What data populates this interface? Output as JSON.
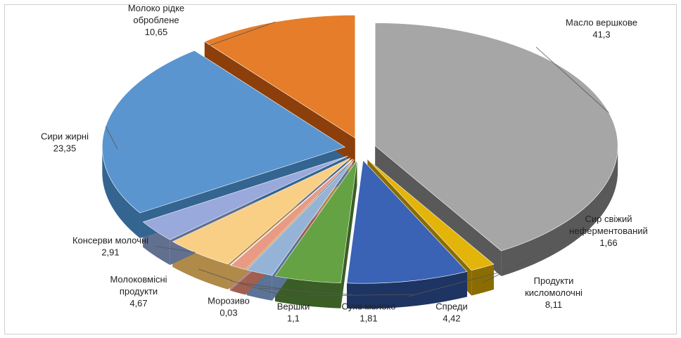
{
  "chart_data": {
    "type": "pie",
    "title": "",
    "categories": [
      "Масло вершкове",
      "Сир свіжий неферментований",
      "Продукти кисломолочні",
      "Спреди",
      "Сухе молоко",
      "Вершки",
      "Морозиво",
      "Молоковмісні продукти",
      "Консерви молочні",
      "Сири жирні",
      "Молоко рідке оброблене"
    ],
    "values": [
      41.3,
      1.66,
      8.11,
      4.42,
      1.81,
      1.1,
      0.03,
      4.67,
      2.91,
      23.35,
      10.65
    ],
    "value_labels": [
      "41,3",
      "1,66",
      "8,11",
      "4,42",
      "1,81",
      "1,1",
      "0,03",
      "4,67",
      "2,91",
      "23,35",
      "10,65"
    ],
    "label_lines": [
      [
        "Масло вершкове"
      ],
      [
        "Сир свіжий",
        "неферментований"
      ],
      [
        "Продукти",
        "кисломолочні"
      ],
      [
        "Спреди"
      ],
      [
        "Сухе молоко"
      ],
      [
        "Вершки"
      ],
      [
        "Морозиво"
      ],
      [
        "Молоковмісні",
        "продукти"
      ],
      [
        "Консерви молочні"
      ],
      [
        "Сири жирні"
      ],
      [
        "Молоко рідке",
        "оброблене"
      ]
    ],
    "colors": [
      "#a6a6a6",
      "#e3b40a",
      "#3a62b5",
      "#64a244",
      "#95b3d7",
      "#e89a84",
      "#e6b8b7",
      "#f9cf86",
      "#9aa9dc",
      "#5a95cf",
      "#e57d2a"
    ],
    "side_colors": [
      "#595959",
      "#8a6c00",
      "#1e3463",
      "#3a5e25",
      "#5a7396",
      "#a05f50",
      "#b08888",
      "#b08a48",
      "#62708f",
      "#346591",
      "#8c3f0a"
    ],
    "exploded": true,
    "three_d": true,
    "legend": "none"
  }
}
